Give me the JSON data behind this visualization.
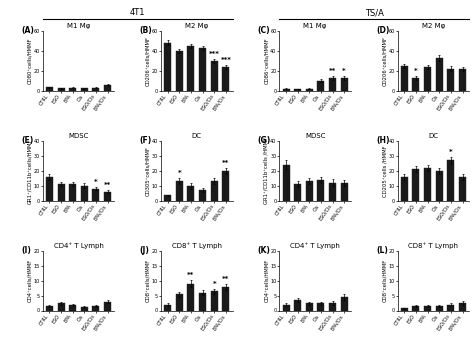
{
  "categories": [
    "CTRL",
    "ESO",
    "EPA",
    "Cis",
    "ESO/Cis",
    "EPA/Cis"
  ],
  "panels": [
    {
      "label": "(A)",
      "title": "M1 Mφ",
      "row": 0,
      "col": 0,
      "ylabel": "CD80⁺cells/HMMF",
      "ylim": [
        0,
        60
      ],
      "yticks": [
        0,
        20,
        40,
        60
      ],
      "values": [
        3.5,
        2.5,
        2.8,
        2.5,
        3.0,
        5.5
      ],
      "errors": [
        0.5,
        0.5,
        0.5,
        0.5,
        0.5,
        1.0
      ],
      "stars": [
        "",
        "",
        "",
        "",
        "",
        ""
      ]
    },
    {
      "label": "(B)",
      "title": "M2 Mφ",
      "row": 0,
      "col": 1,
      "ylabel": "CD206⁺cells/HMMF",
      "ylim": [
        0,
        60
      ],
      "yticks": [
        0,
        20,
        40,
        60
      ],
      "values": [
        48,
        40,
        45,
        43,
        30,
        24
      ],
      "errors": [
        2.5,
        2.0,
        2.0,
        2.0,
        2.0,
        2.0
      ],
      "stars": [
        "",
        "",
        "",
        "",
        "***",
        "***"
      ]
    },
    {
      "label": "(C)",
      "title": "M1 Mφ",
      "row": 0,
      "col": 2,
      "ylabel": "CD86⁺cells/HMMF",
      "ylim": [
        0,
        60
      ],
      "yticks": [
        0,
        20,
        40,
        60
      ],
      "values": [
        2.0,
        1.5,
        1.8,
        10,
        13,
        13
      ],
      "errors": [
        0.4,
        0.3,
        0.3,
        1.5,
        2.0,
        2.0
      ],
      "stars": [
        "",
        "",
        "",
        "",
        "**",
        "*"
      ]
    },
    {
      "label": "(D)",
      "title": "M2 Mφ",
      "row": 0,
      "col": 3,
      "ylabel": "CD206⁺cells/HMMF",
      "ylim": [
        0,
        60
      ],
      "yticks": [
        0,
        20,
        40,
        60
      ],
      "values": [
        25,
        13,
        24,
        33,
        22,
        22
      ],
      "errors": [
        2.0,
        2.0,
        2.0,
        3.0,
        2.5,
        2.0
      ],
      "stars": [
        "",
        "*",
        "",
        "",
        "",
        ""
      ]
    },
    {
      "label": "(E)",
      "title": "MDSC",
      "row": 1,
      "col": 0,
      "ylabel": "GR1⁺/CD11b⁺cells/HMMF",
      "ylim": [
        0,
        40
      ],
      "yticks": [
        0,
        10,
        20,
        30,
        40
      ],
      "values": [
        16,
        11,
        11,
        10,
        8,
        6
      ],
      "errors": [
        2.0,
        1.5,
        1.5,
        1.5,
        1.0,
        1.0
      ],
      "stars": [
        "",
        "",
        "",
        "",
        "*",
        "**"
      ]
    },
    {
      "label": "(F)",
      "title": "DC",
      "row": 1,
      "col": 1,
      "ylabel": "CD305⁺cells/HMMF",
      "ylim": [
        0,
        40
      ],
      "yticks": [
        0,
        10,
        20,
        30,
        40
      ],
      "values": [
        3.5,
        13,
        10,
        7,
        13,
        20
      ],
      "errors": [
        0.5,
        2.0,
        2.0,
        1.5,
        2.0,
        2.0
      ],
      "stars": [
        "",
        "*",
        "",
        "",
        "",
        "**"
      ]
    },
    {
      "label": "(G)",
      "title": "MDSC",
      "row": 1,
      "col": 2,
      "ylabel": "GR1⁺/CD11b⁺cells /HMMF",
      "ylim": [
        0,
        40
      ],
      "yticks": [
        0,
        10,
        20,
        30,
        40
      ],
      "values": [
        24,
        11,
        13,
        14,
        12,
        12
      ],
      "errors": [
        3.0,
        2.0,
        2.0,
        2.0,
        2.5,
        2.0
      ],
      "stars": [
        "",
        "",
        "",
        "",
        "",
        ""
      ]
    },
    {
      "label": "(H)",
      "title": "DC",
      "row": 1,
      "col": 3,
      "ylabel": "CD205⁺cells /HMMF",
      "ylim": [
        0,
        40
      ],
      "yticks": [
        0,
        10,
        20,
        30,
        40
      ],
      "values": [
        16,
        21,
        22,
        20,
        27,
        16
      ],
      "errors": [
        2.0,
        2.0,
        2.0,
        2.0,
        2.5,
        2.0
      ],
      "stars": [
        "",
        "",
        "",
        "",
        "*",
        ""
      ]
    },
    {
      "label": "(I)",
      "title": "CD4⁺ T Lymph",
      "row": 2,
      "col": 0,
      "ylabel": "CD4⁺cells/HMMF",
      "ylim": [
        0,
        20
      ],
      "yticks": [
        0,
        5,
        10,
        15,
        20
      ],
      "values": [
        1.5,
        2.5,
        1.8,
        1.2,
        1.5,
        3.0
      ],
      "errors": [
        0.3,
        0.5,
        0.4,
        0.3,
        0.3,
        0.6
      ],
      "stars": [
        "",
        "",
        "",
        "",
        "",
        ""
      ]
    },
    {
      "label": "(J)",
      "title": "CD8⁺ T Lymph",
      "row": 2,
      "col": 1,
      "ylabel": "CD8⁺cells/HMMF",
      "ylim": [
        0,
        20
      ],
      "yticks": [
        0,
        5,
        10,
        15,
        20
      ],
      "values": [
        2.0,
        5.5,
        9.0,
        6.0,
        6.5,
        8.0
      ],
      "errors": [
        0.4,
        0.8,
        1.2,
        0.8,
        0.8,
        1.0
      ],
      "stars": [
        "",
        "",
        "**",
        "",
        "*",
        "**"
      ]
    },
    {
      "label": "(K)",
      "title": "CD4⁺ T Lymph",
      "row": 2,
      "col": 2,
      "ylabel": "CD4⁺cells/HMMF",
      "ylim": [
        0,
        20
      ],
      "yticks": [
        0,
        5,
        10,
        15,
        20
      ],
      "values": [
        2.0,
        3.5,
        2.5,
        2.5,
        2.5,
        4.5
      ],
      "errors": [
        0.4,
        0.6,
        0.5,
        0.5,
        0.8,
        1.0
      ],
      "stars": [
        "",
        "",
        "",
        "",
        "",
        ""
      ]
    },
    {
      "label": "(L)",
      "title": "CD8⁺ T Lymph",
      "row": 2,
      "col": 3,
      "ylabel": "CD8⁺cells/HMMF",
      "ylim": [
        0,
        20
      ],
      "yticks": [
        0,
        5,
        10,
        15,
        20
      ],
      "values": [
        0.8,
        1.5,
        1.5,
        1.5,
        2.0,
        2.5
      ],
      "errors": [
        0.2,
        0.4,
        0.4,
        0.3,
        0.5,
        0.7
      ],
      "stars": [
        "",
        "",
        "",
        "",
        "",
        ""
      ]
    }
  ],
  "bar_color": "#1a1a1a",
  "bar_width": 0.6,
  "bar_edgecolor": "#1a1a1a",
  "title_fontsize": 5.0,
  "label_fontsize": 3.8,
  "tick_fontsize": 3.5,
  "star_fontsize": 5.0,
  "panel_label_fontsize": 5.5,
  "header_4T1": "4T1",
  "header_TSA": "TS/A",
  "figure_bg": "#ffffff"
}
